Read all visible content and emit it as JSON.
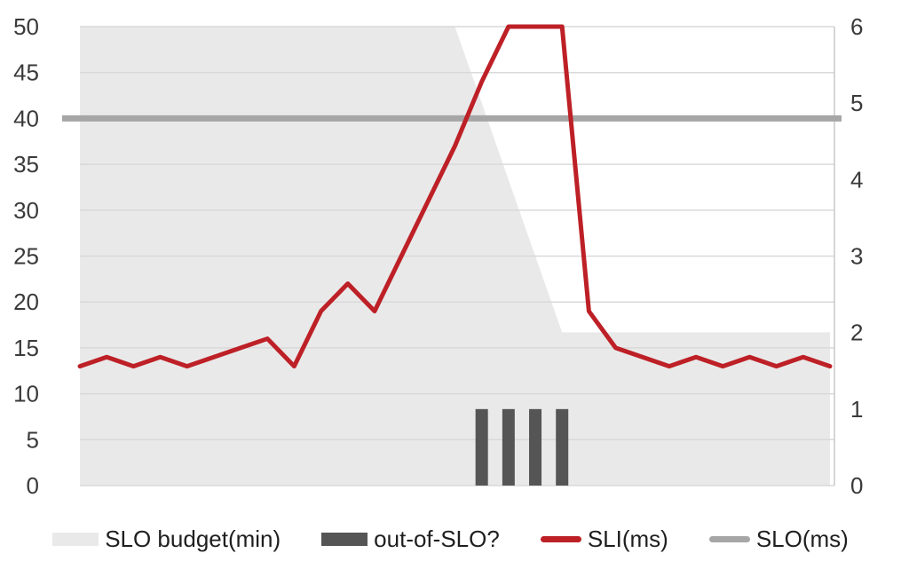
{
  "page": {
    "background": "#ffffff"
  },
  "chart_data": {
    "type": "line",
    "title": "",
    "grid": "horizontal",
    "legend_position": "bottom",
    "x_axis": {
      "labels_visible": false,
      "point_count": 29
    },
    "left_axis": {
      "min": 0,
      "max": 50,
      "ticks": [
        0,
        5,
        10,
        15,
        20,
        25,
        30,
        35,
        40,
        45,
        50
      ]
    },
    "right_axis": {
      "min": 0,
      "max": 6,
      "ticks": [
        0,
        1,
        2,
        3,
        4,
        5,
        6
      ]
    },
    "colors": {
      "grid": "#d9d9d9",
      "axis_text": "#3a3a3a",
      "right_axis_line": "#c9c9c9",
      "legend_text": "#1f1f1f"
    },
    "series": [
      {
        "name": "SLO budget(min)",
        "type": "area",
        "axis": "left",
        "unit": "min",
        "color": "#e9e9e9",
        "values": [
          50,
          50,
          50,
          50,
          50,
          50,
          50,
          50,
          50,
          50,
          50,
          50,
          50,
          50,
          50,
          41.7,
          33.3,
          25,
          16.7,
          16.7,
          16.7,
          16.7,
          16.7,
          16.7,
          16.7,
          16.7,
          16.7,
          16.7,
          16.7
        ]
      },
      {
        "name": "out-of-SLO?",
        "type": "bar",
        "axis": "right",
        "color": "#555555",
        "values": [
          null,
          null,
          null,
          null,
          null,
          null,
          null,
          null,
          null,
          null,
          null,
          null,
          null,
          null,
          null,
          1,
          1,
          1,
          1,
          null,
          null,
          null,
          null,
          null,
          null,
          null,
          null,
          null,
          null
        ]
      },
      {
        "name": "SLI(ms)",
        "type": "line",
        "axis": "left",
        "unit": "ms",
        "color": "#bd2026",
        "values": [
          13,
          14,
          13,
          14,
          13,
          14,
          15,
          16,
          13,
          19,
          22,
          19,
          25,
          31,
          37,
          44,
          50,
          50,
          50,
          19,
          15,
          14,
          13,
          14,
          13,
          14,
          13,
          14,
          13
        ]
      },
      {
        "name": "SLO(ms)",
        "type": "line",
        "axis": "left",
        "color": "#a6a6a6",
        "constant_value": 40
      }
    ]
  }
}
